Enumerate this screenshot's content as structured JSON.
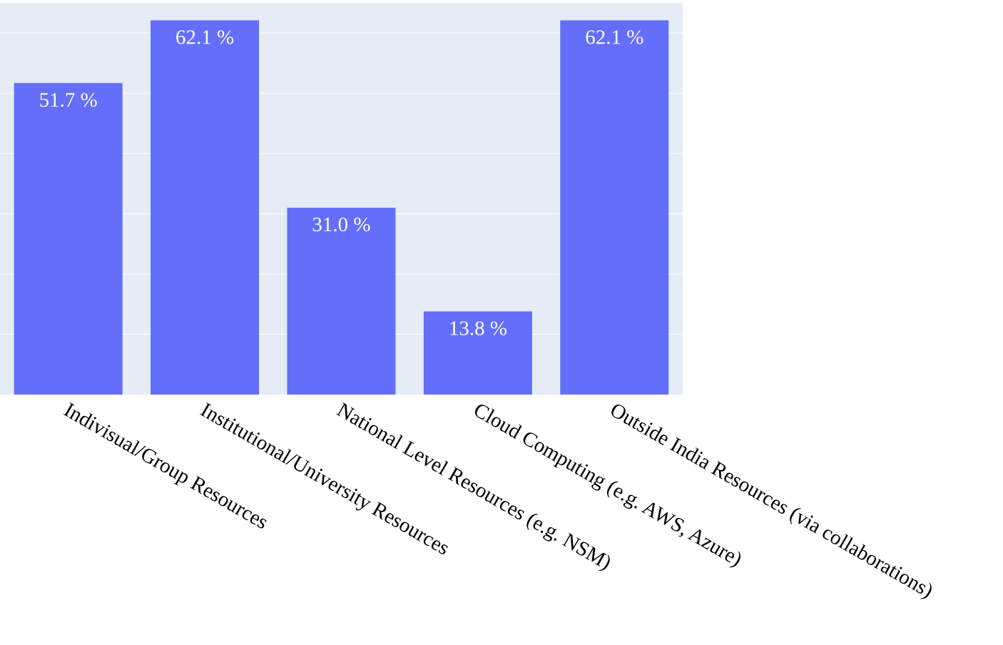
{
  "chart_data": {
    "type": "bar",
    "categories": [
      "Indivisual/Group Resources",
      "Institutional/University Resources",
      "National Level Resources (e.g. NSM)",
      "Cloud Computing (e.g. AWS, Azure)",
      "Outside India Resources (via collaborations)"
    ],
    "values": [
      51.7,
      62.1,
      31.0,
      13.8,
      62.1
    ],
    "data_labels": [
      "51.7 %",
      "62.1 %",
      "31.0 %",
      "13.8 %",
      "62.1 %"
    ],
    "ylim": [
      0,
      65
    ],
    "grid": true,
    "colors": {
      "bar": "#636efa",
      "plot_background": "#e5ecf6",
      "gridline": "#ffffff"
    }
  }
}
